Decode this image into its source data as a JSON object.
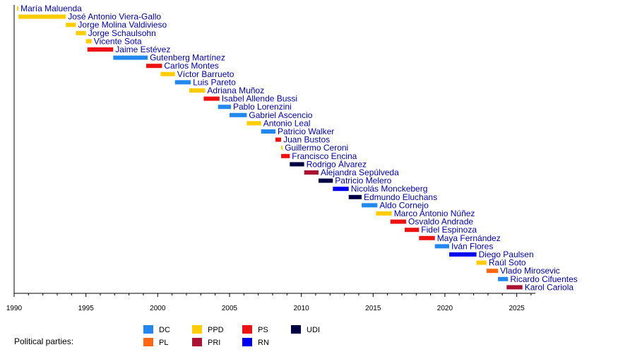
{
  "chart_data": {
    "type": "timeline",
    "title": "",
    "xlabel": "",
    "ylabel": "",
    "xlim": [
      1990,
      2026.3
    ],
    "xticks": [
      1990,
      1995,
      2000,
      2005,
      2010,
      2015,
      2020,
      2025
    ],
    "grid": false,
    "parties": {
      "DC": "#2288ee",
      "PL": "#ff6611",
      "PPD": "#ffcc00",
      "PRI": "#aa1133",
      "PS": "#ee1111",
      "RN": "#0000ee",
      "UDI": "#000044"
    },
    "legend": {
      "title": "Political parties:",
      "placement": "bottom",
      "entries": [
        {
          "label": "DC",
          "party": "DC"
        },
        {
          "label": "PL",
          "party": "PL"
        },
        {
          "label": "PPD",
          "party": "PPD"
        },
        {
          "label": "PRI",
          "party": "PRI"
        },
        {
          "label": "PS",
          "party": "PS"
        },
        {
          "label": "RN",
          "party": "RN"
        },
        {
          "label": "UDI",
          "party": "UDI"
        }
      ]
    },
    "terms": [
      {
        "name": "María Maluenda",
        "start": 1990.2,
        "end": 1990.3,
        "party": "PPD"
      },
      {
        "name": "José Antonio Viera-Gallo",
        "start": 1990.3,
        "end": 1993.6,
        "party": "PPD"
      },
      {
        "name": "Jorge Molina Valdivieso",
        "start": 1993.6,
        "end": 1994.3,
        "party": "PPD"
      },
      {
        "name": "Jorge Schaulsohn",
        "start": 1994.3,
        "end": 1995.0,
        "party": "PPD"
      },
      {
        "name": "Vicente Sota",
        "start": 1995.0,
        "end": 1995.4,
        "party": "PPD"
      },
      {
        "name": "Jaime Estévez",
        "start": 1995.1,
        "end": 1996.9,
        "party": "PS"
      },
      {
        "name": "Gutenberg Martínez",
        "start": 1996.9,
        "end": 1999.3,
        "party": "DC"
      },
      {
        "name": "Carlos Montes",
        "start": 1999.2,
        "end": 2000.3,
        "party": "PS"
      },
      {
        "name": "Víctor Barrueto",
        "start": 2000.2,
        "end": 2001.2,
        "party": "PPD"
      },
      {
        "name": "Luis Pareto",
        "start": 2001.2,
        "end": 2002.3,
        "party": "DC"
      },
      {
        "name": "Adriana Muñoz",
        "start": 2002.2,
        "end": 2003.3,
        "party": "PPD"
      },
      {
        "name": "Isabel Allende Bussi",
        "start": 2003.2,
        "end": 2004.3,
        "party": "PS"
      },
      {
        "name": "Pablo Lorenzini",
        "start": 2004.2,
        "end": 2005.1,
        "party": "DC"
      },
      {
        "name": "Gabriel Ascencio",
        "start": 2005.0,
        "end": 2006.2,
        "party": "DC"
      },
      {
        "name": "Antonio Leal",
        "start": 2006.2,
        "end": 2007.2,
        "party": "PPD"
      },
      {
        "name": "Patricio Walker",
        "start": 2007.2,
        "end": 2008.2,
        "party": "DC"
      },
      {
        "name": "Juan Bustos",
        "start": 2008.2,
        "end": 2008.6,
        "party": "PS"
      },
      {
        "name": "Guillermo Ceroni",
        "start": 2008.6,
        "end": 2008.7,
        "party": "PPD"
      },
      {
        "name": "Francisco Encina",
        "start": 2008.6,
        "end": 2009.2,
        "party": "PS"
      },
      {
        "name": "Rodrigo Álvarez",
        "start": 2009.2,
        "end": 2010.2,
        "party": "UDI"
      },
      {
        "name": "Alejandra Sepúlveda",
        "start": 2010.2,
        "end": 2011.2,
        "party": "PRI"
      },
      {
        "name": "Patricio Melero",
        "start": 2011.2,
        "end": 2012.2,
        "party": "UDI"
      },
      {
        "name": "Nicolás Monckeberg",
        "start": 2012.2,
        "end": 2013.3,
        "party": "RN"
      },
      {
        "name": "Edmundo Eluchans",
        "start": 2013.3,
        "end": 2014.2,
        "party": "UDI"
      },
      {
        "name": "Aldo Cornejo",
        "start": 2014.2,
        "end": 2015.3,
        "party": "DC"
      },
      {
        "name": "Marco Antonio Núñez",
        "start": 2015.2,
        "end": 2016.3,
        "party": "PPD"
      },
      {
        "name": "Osvaldo Andrade",
        "start": 2016.2,
        "end": 2017.3,
        "party": "PS"
      },
      {
        "name": "Fidel Espinoza",
        "start": 2017.2,
        "end": 2018.2,
        "party": "PS"
      },
      {
        "name": "Maya Fernández",
        "start": 2018.2,
        "end": 2019.3,
        "party": "PS"
      },
      {
        "name": "Iván Flores",
        "start": 2019.3,
        "end": 2020.3,
        "party": "DC"
      },
      {
        "name": "Diego Paulsen",
        "start": 2020.3,
        "end": 2022.2,
        "party": "RN"
      },
      {
        "name": "Raúl Soto",
        "start": 2022.2,
        "end": 2022.9,
        "party": "PPD"
      },
      {
        "name": "Vlado Mirosevic",
        "start": 2022.9,
        "end": 2023.7,
        "party": "PL"
      },
      {
        "name": "Ricardo Cifuentes",
        "start": 2023.7,
        "end": 2024.4,
        "party": "DC"
      },
      {
        "name": "Karol Cariola",
        "start": 2024.3,
        "end": 2025.4,
        "party": "PRI"
      }
    ]
  }
}
